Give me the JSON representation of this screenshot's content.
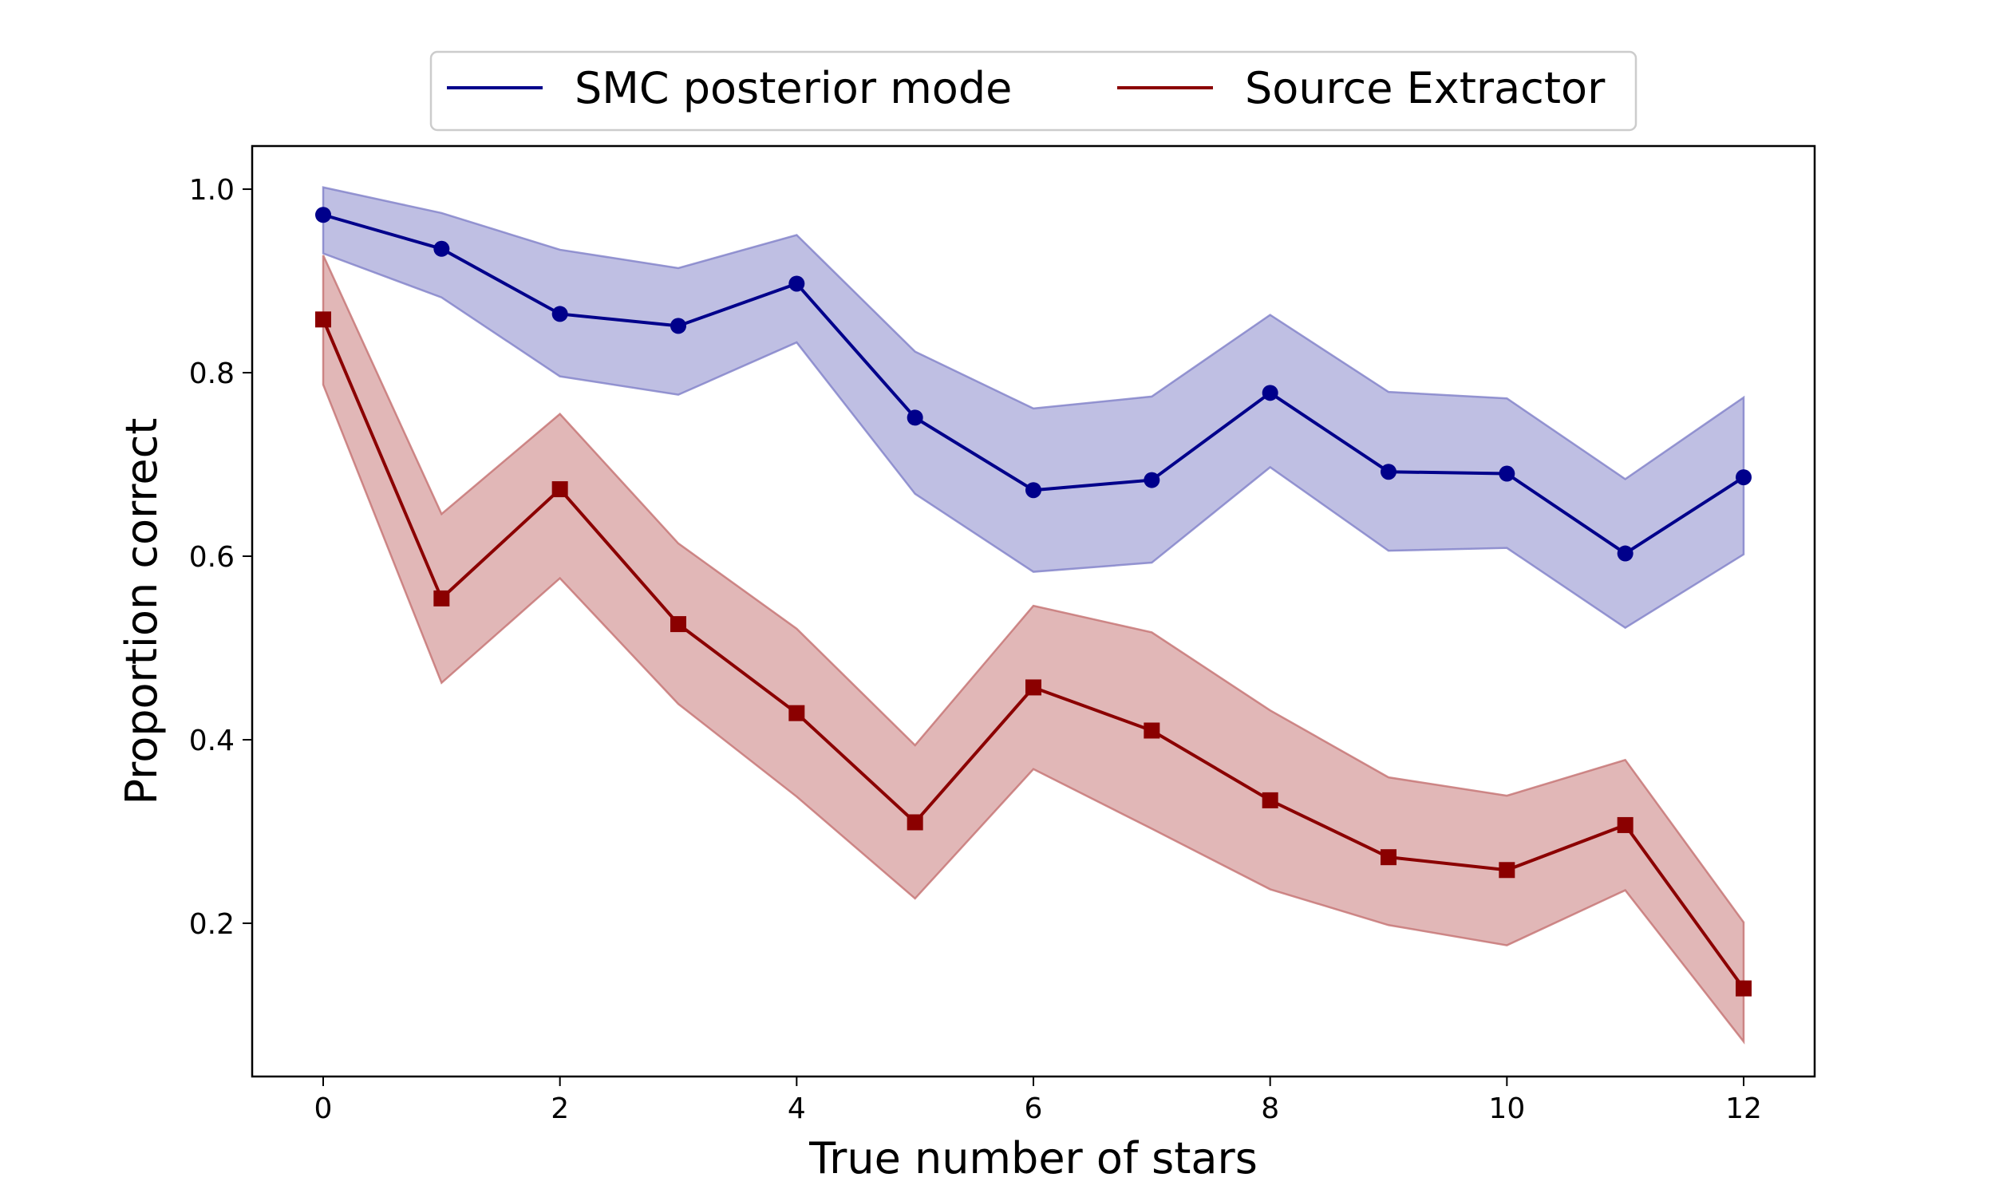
{
  "chart_data": {
    "type": "line",
    "title": "",
    "xlabel": "True number of stars",
    "ylabel": "Proportion correct",
    "xlim": [
      -0.6,
      12.6
    ],
    "ylim": [
      0.033,
      1.047
    ],
    "xticks": [
      "0",
      "2",
      "4",
      "6",
      "8",
      "10",
      "12"
    ],
    "yticks": [
      "0.2",
      "0.4",
      "0.6",
      "0.8",
      "1.0"
    ],
    "grid": false,
    "legend_position": "top-center",
    "x": [
      0,
      1,
      2,
      3,
      4,
      5,
      6,
      7,
      8,
      9,
      10,
      11,
      12
    ],
    "series": [
      {
        "name": "SMC posterior mode",
        "color": "#00008b",
        "band_color": "#8080c8",
        "marker": "circle",
        "values": [
          0.972,
          0.935,
          0.864,
          0.851,
          0.897,
          0.751,
          0.672,
          0.683,
          0.778,
          0.692,
          0.69,
          0.603,
          0.686
        ],
        "lower": [
          0.93,
          0.882,
          0.796,
          0.776,
          0.833,
          0.668,
          0.583,
          0.593,
          0.697,
          0.606,
          0.609,
          0.522,
          0.602
        ],
        "upper": [
          1.002,
          0.974,
          0.934,
          0.914,
          0.95,
          0.823,
          0.761,
          0.774,
          0.863,
          0.779,
          0.772,
          0.684,
          0.773
        ]
      },
      {
        "name": "Source Extractor",
        "color": "#8b0000",
        "band_color": "#c47070",
        "marker": "square",
        "values": [
          0.858,
          0.554,
          0.673,
          0.526,
          0.429,
          0.31,
          0.457,
          0.41,
          0.334,
          0.272,
          0.258,
          0.307,
          0.129
        ],
        "lower": [
          0.787,
          0.462,
          0.576,
          0.439,
          0.338,
          0.227,
          0.368,
          0.303,
          0.237,
          0.198,
          0.176,
          0.236,
          0.071
        ],
        "upper": [
          0.928,
          0.646,
          0.755,
          0.614,
          0.521,
          0.394,
          0.546,
          0.517,
          0.432,
          0.359,
          0.339,
          0.378,
          0.201
        ]
      }
    ]
  }
}
